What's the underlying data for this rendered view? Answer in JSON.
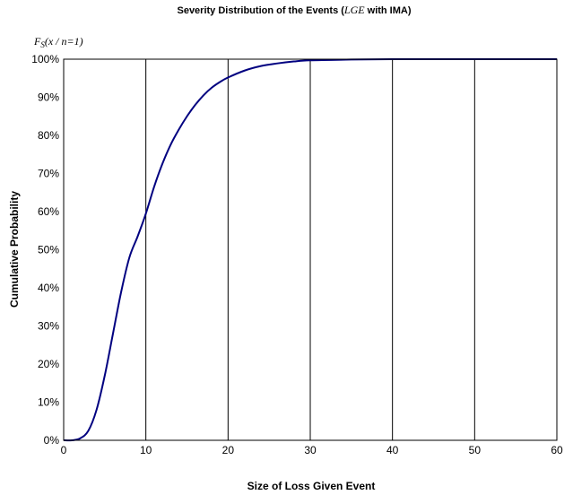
{
  "chart_data": {
    "type": "line",
    "title_prefix": "Severity Distribution of the Events (",
    "title_italic": "LGE",
    "title_suffix": " with IMA)",
    "function_label": "F",
    "function_label_sub": "S",
    "function_label_args": "(x / n=1)",
    "xlabel": "Size of Loss Given Event",
    "ylabel": "Cumulative Probability",
    "xlim": [
      0,
      60
    ],
    "ylim": [
      0,
      1
    ],
    "x_ticks": [
      "0",
      "10",
      "20",
      "30",
      "40",
      "50",
      "60"
    ],
    "x_tick_values": [
      0,
      10,
      20,
      30,
      40,
      50,
      60
    ],
    "y_ticks": [
      "0%",
      "10%",
      "20%",
      "30%",
      "40%",
      "50%",
      "60%",
      "70%",
      "80%",
      "90%",
      "100%"
    ],
    "y_tick_values": [
      0,
      0.1,
      0.2,
      0.3,
      0.4,
      0.5,
      0.6,
      0.7,
      0.8,
      0.9,
      1.0
    ],
    "grid": "vertical",
    "line_color": "#000080",
    "x": [
      0,
      1,
      2,
      3,
      4,
      5,
      6,
      7,
      8,
      9,
      10,
      11,
      12,
      13,
      14,
      15,
      16,
      17,
      18,
      19,
      20,
      22,
      24,
      26,
      28,
      30,
      35,
      40,
      45,
      50,
      55,
      60
    ],
    "y": [
      0.0,
      0.0,
      0.005,
      0.025,
      0.08,
      0.17,
      0.28,
      0.39,
      0.48,
      0.535,
      0.595,
      0.665,
      0.725,
      0.775,
      0.815,
      0.85,
      0.88,
      0.905,
      0.925,
      0.94,
      0.952,
      0.97,
      0.982,
      0.989,
      0.994,
      0.997,
      0.999,
      1.0,
      1.0,
      1.0,
      1.0,
      1.0
    ]
  }
}
